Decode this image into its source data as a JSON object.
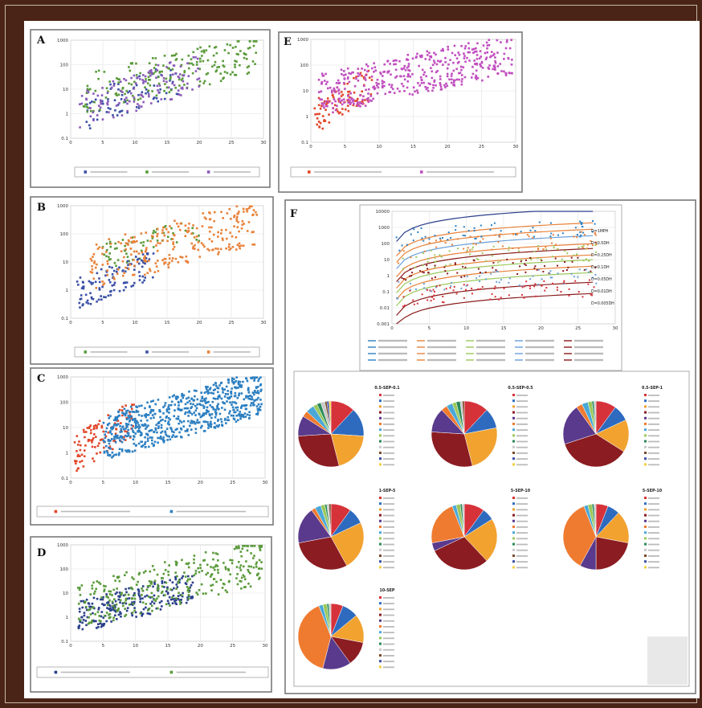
{
  "panels": [
    {
      "letter": "A"
    },
    {
      "letter": "B"
    },
    {
      "letter": "C"
    },
    {
      "letter": "D"
    },
    {
      "letter": "E"
    },
    {
      "letter": "F"
    }
  ],
  "colors": {
    "blue": "#3a4fa6",
    "green": "#5a9a3a",
    "purple": "#8a5ab8",
    "orange": "#e8823a",
    "magenta": "#c04fbf",
    "red": "#e2472a",
    "cblue": "#2c7fc1",
    "dred": "#8a1a1a",
    "navy": "#2a3f8a"
  },
  "chart_data": [
    {
      "panel": "A",
      "type": "scatter",
      "x_axis": "linear",
      "y_axis": "log",
      "xlim": [
        0,
        30
      ],
      "ylim": [
        0.1,
        1000
      ],
      "x_ticks": [
        0,
        5,
        10,
        15,
        20,
        25,
        30
      ],
      "y_ticks": [
        0.1,
        1,
        10,
        100,
        1000
      ],
      "series": [
        {
          "color": "#3a4fa6",
          "count": 70,
          "x_range": [
            2,
            17
          ],
          "y_range": [
            0.2,
            100
          ]
        },
        {
          "color": "#5a9a3a",
          "count": 200,
          "x_range": [
            2,
            29
          ],
          "y_range": [
            1,
            900
          ]
        },
        {
          "color": "#8a5ab8",
          "count": 130,
          "x_range": [
            1,
            20
          ],
          "y_range": [
            0.15,
            200
          ]
        }
      ]
    },
    {
      "panel": "B",
      "type": "scatter",
      "x_axis": "linear",
      "y_axis": "log",
      "xlim": [
        0,
        30
      ],
      "ylim": [
        0.1,
        1000
      ],
      "x_ticks": [
        0,
        5,
        10,
        15,
        20,
        25,
        30
      ],
      "y_ticks": [
        0.1,
        1,
        10,
        100,
        1000
      ],
      "series": [
        {
          "color": "#5a9a3a",
          "count": 60,
          "x_range": [
            5,
            20
          ],
          "y_range": [
            5,
            300
          ]
        },
        {
          "color": "#3a4fa6",
          "count": 110,
          "x_range": [
            1,
            13
          ],
          "y_range": [
            0.2,
            20
          ]
        },
        {
          "color": "#e8823a",
          "count": 260,
          "x_range": [
            3,
            29
          ],
          "y_range": [
            1,
            950
          ]
        }
      ]
    },
    {
      "panel": "C",
      "type": "scatter",
      "x_axis": "linear",
      "y_axis": "log",
      "xlim": [
        0,
        30
      ],
      "ylim": [
        0.1,
        1000
      ],
      "x_ticks": [
        0,
        5,
        10,
        15,
        20,
        25,
        30
      ],
      "y_ticks": [
        0.1,
        1,
        10,
        100,
        1000
      ],
      "series": [
        {
          "color": "#e2472a",
          "count": 110,
          "x_range": [
            0.5,
            10
          ],
          "y_range": [
            0.15,
            80
          ]
        },
        {
          "color": "#2c7fc1",
          "count": 700,
          "x_range": [
            5,
            29.5
          ],
          "y_range": [
            0.5,
            950
          ]
        }
      ]
    },
    {
      "panel": "D",
      "type": "scatter",
      "x_axis": "linear",
      "y_axis": "log",
      "xlim": [
        0,
        30
      ],
      "ylim": [
        0.1,
        1000
      ],
      "x_ticks": [
        0,
        5,
        10,
        15,
        20,
        25,
        30
      ],
      "y_ticks": [
        0.1,
        1,
        10,
        100,
        1000
      ],
      "series": [
        {
          "color": "#2a3f8a",
          "count": 230,
          "x_range": [
            1,
            19
          ],
          "y_range": [
            0.2,
            50
          ]
        },
        {
          "color": "#5a9a3a",
          "count": 320,
          "x_range": [
            1,
            29.5
          ],
          "y_range": [
            0.3,
            900
          ]
        }
      ]
    },
    {
      "panel": "E",
      "type": "scatter",
      "x_axis": "linear",
      "y_axis": "log",
      "xlim": [
        0,
        30
      ],
      "ylim": [
        0.1,
        1000
      ],
      "x_ticks": [
        0,
        5,
        10,
        15,
        20,
        25,
        30
      ],
      "y_ticks": [
        0.1,
        1,
        10,
        100,
        1000
      ],
      "series": [
        {
          "color": "#e2472a",
          "count": 90,
          "x_range": [
            0.5,
            9
          ],
          "y_range": [
            0.2,
            60
          ]
        },
        {
          "color": "#c04fbf",
          "count": 420,
          "x_range": [
            1,
            29.5
          ],
          "y_range": [
            1,
            950
          ]
        }
      ]
    },
    {
      "panel": "F",
      "type": "scatter",
      "x_axis": "linear",
      "y_axis": "log",
      "xlim": [
        0,
        30
      ],
      "ylim": [
        0.001,
        10000
      ],
      "x_ticks": [
        0,
        5,
        10,
        15,
        20,
        25,
        30
      ],
      "y_ticks": [
        0.001,
        0.01,
        0.1,
        1,
        10,
        100,
        1000,
        10000
      ],
      "curve_labels": [
        "D=1MPH",
        "D=0.5DH",
        "D=0.25DH",
        "D=0.1DH",
        "D=0.05DH",
        "D=0.01DH",
        "D=0.005DH"
      ]
    },
    {
      "panel": "F",
      "type": "pie",
      "pie_titles": [
        "0.5-SEP-0.1",
        "0.5-SEP-0.5",
        "0.5-SEP-1",
        "1-SEP-5",
        "5-SEP-10",
        "5-SEP-10",
        "10-SEP"
      ],
      "legend_entries_per_pie": 13,
      "slice_colors": [
        "#d6323a",
        "#2e6bbf",
        "#f1a22f",
        "#8b1c22",
        "#5a3a8c",
        "#ef7b30",
        "#4aa8d8",
        "#9bc85a",
        "#2a8a5a",
        "#c8c8c8",
        "#7a4a2a",
        "#3a4fa6",
        "#f0d040"
      ],
      "slice_weights": [
        [
          12,
          14,
          20,
          28,
          10,
          3,
          4,
          2,
          2,
          2,
          1,
          1,
          1
        ],
        [
          12,
          10,
          24,
          30,
          12,
          3,
          3,
          2,
          2,
          1,
          1,
          0,
          0
        ],
        [
          10,
          8,
          16,
          36,
          20,
          3,
          3,
          2,
          1,
          1,
          0,
          0,
          0
        ],
        [
          10,
          8,
          24,
          30,
          18,
          2,
          3,
          2,
          1,
          1,
          1,
          0,
          0
        ],
        [
          10,
          6,
          22,
          30,
          4,
          22,
          2,
          2,
          1,
          1,
          0,
          0,
          0
        ],
        [
          6,
          6,
          16,
          22,
          8,
          36,
          2,
          2,
          1,
          1,
          0,
          0,
          0
        ],
        [
          6,
          8,
          14,
          12,
          14,
          40,
          2,
          2,
          1,
          1,
          0,
          0,
          0
        ]
      ]
    }
  ]
}
